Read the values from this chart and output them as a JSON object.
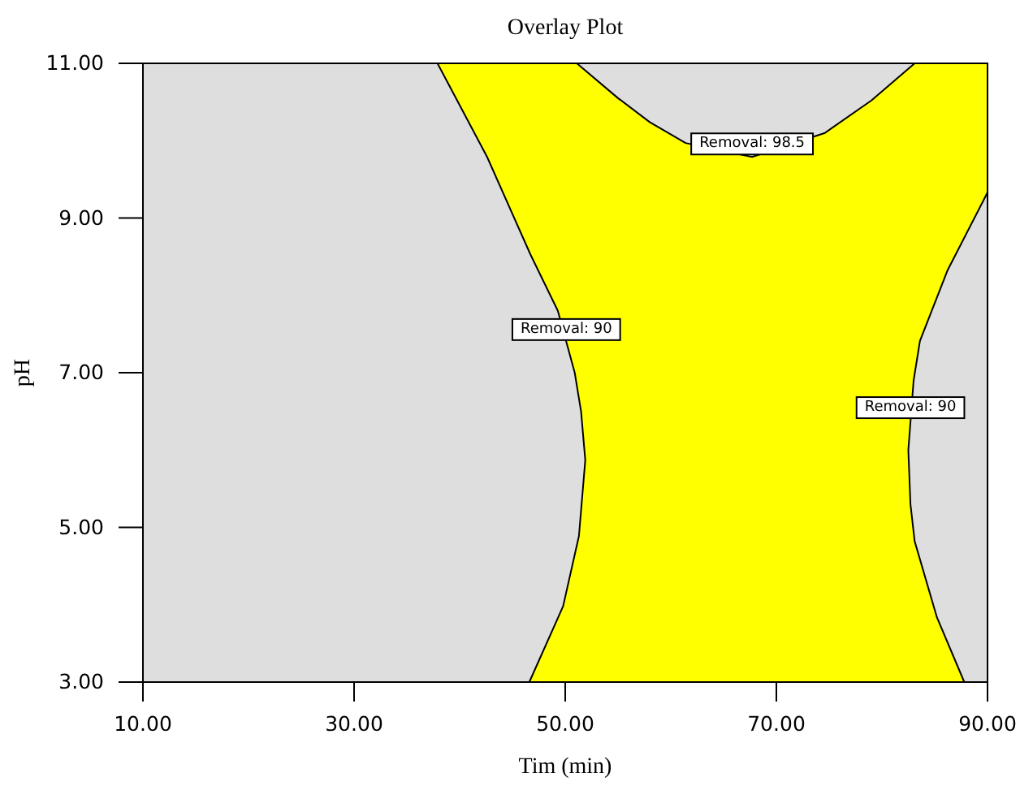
{
  "chart_data": {
    "type": "area",
    "title": "Overlay Plot",
    "xlabel": "Tim (min)",
    "ylabel": "pH",
    "xlim": [
      10,
      90
    ],
    "ylim": [
      3,
      11
    ],
    "xticks": [
      {
        "value": 10,
        "label": "10.00"
      },
      {
        "value": 30,
        "label": "30.00"
      },
      {
        "value": 50,
        "label": "50.00"
      },
      {
        "value": 70,
        "label": "70.00"
      },
      {
        "value": 90,
        "label": "90.00"
      }
    ],
    "yticks": [
      {
        "value": 3,
        "label": "3.00"
      },
      {
        "value": 5,
        "label": "5.00"
      },
      {
        "value": 7,
        "label": "7.00"
      },
      {
        "value": 9,
        "label": "9.00"
      },
      {
        "value": 11,
        "label": "11.00"
      }
    ],
    "series": [
      {
        "color": "#ffff00",
        "x": [
          37.9,
          51.1,
          55,
          58,
          61.4,
          67.7,
          74.6,
          79,
          83.1,
          90,
          90,
          86.2,
          83.6,
          83.0,
          82.5,
          82.7,
          83.1,
          85.2,
          87.8,
          46.6,
          49.8,
          51.3,
          51.9,
          51.5,
          50.9,
          49.3,
          46.7,
          42.6,
          37.9
        ],
        "values": [
          11,
          11,
          10.55,
          10.24,
          9.97,
          9.79,
          10.1,
          10.52,
          11,
          11,
          9.33,
          8.32,
          7.41,
          6.9,
          6.0,
          5.3,
          4.82,
          3.84,
          3,
          3,
          3.98,
          4.89,
          5.87,
          6.5,
          7.0,
          7.8,
          8.53,
          9.79,
          11
        ]
      }
    ],
    "annotations": [
      {
        "text": "Removal: 98.5",
        "x": 67.7,
        "y": 9.79
      },
      {
        "text": "Removal: 90",
        "x": 50.1,
        "y": 7.39
      },
      {
        "text": "Removal: 90",
        "x": 82.7,
        "y": 6.38
      }
    ]
  }
}
